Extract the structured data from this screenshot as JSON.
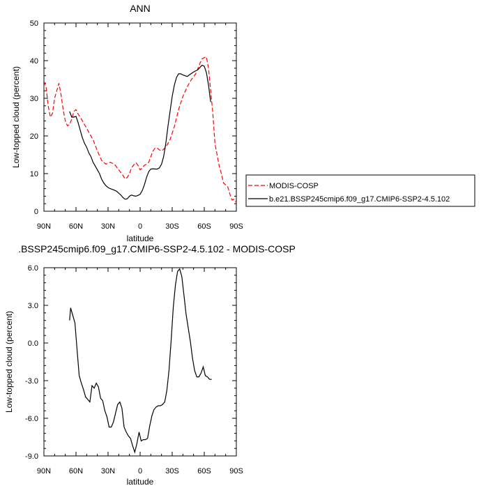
{
  "chart_data": [
    {
      "type": "line",
      "title": "ANN",
      "xlabel": "latitude",
      "ylabel": "Low-topped cloud (percent)",
      "xlim": [
        90,
        -90
      ],
      "ylim": [
        0,
        50
      ],
      "xticks": [
        90,
        60,
        30,
        0,
        -30,
        -60,
        -90
      ],
      "xtick_labels": [
        "90N",
        "60N",
        "30N",
        "0",
        "30S",
        "60S",
        "90S"
      ],
      "yticks": [
        0,
        10,
        20,
        30,
        40,
        50
      ],
      "ytick_labels": [
        "0",
        "10",
        "20",
        "30",
        "40",
        "50"
      ],
      "legend": {
        "placement": "right"
      },
      "series": [
        {
          "name": "MODIS-COSP",
          "color": "#ff0000",
          "dash": "dashed",
          "x": [
            90,
            88,
            86,
            84,
            82,
            80,
            78,
            76,
            74,
            72,
            70,
            68,
            66,
            64,
            62,
            60,
            58,
            55,
            52,
            48,
            44,
            40,
            36,
            32,
            28,
            24,
            20,
            16,
            14,
            12,
            10,
            8,
            6,
            4,
            2,
            0,
            -2,
            -4,
            -6,
            -8,
            -10,
            -12,
            -14,
            -16,
            -18,
            -20,
            -24,
            -28,
            -32,
            -36,
            -40,
            -44,
            -48,
            -52,
            -56,
            -58,
            -60,
            -62,
            -64,
            -66,
            -68,
            -70,
            -72,
            -74,
            -76,
            -78,
            -80,
            -82,
            -84,
            -86,
            -88,
            -90
          ],
          "y": [
            34.5,
            33,
            28,
            25,
            26,
            30,
            32,
            34,
            31,
            27,
            24,
            22.7,
            23,
            24.5,
            26.5,
            27,
            25.8,
            24.5,
            23,
            21,
            19,
            16,
            13.5,
            12.5,
            13,
            12.5,
            11,
            9.5,
            8.6,
            9,
            10,
            11.5,
            12.3,
            12.9,
            12.2,
            11,
            11.5,
            12.2,
            12.5,
            13,
            14.5,
            16,
            16.8,
            16.8,
            16.3,
            16,
            17,
            19,
            22.5,
            27,
            30.5,
            33,
            35,
            36.5,
            39.3,
            40.5,
            40.8,
            41,
            38,
            32,
            26,
            18,
            15,
            12,
            10,
            7.5,
            7,
            6.5,
            4.5,
            3,
            3.2,
            2.3
          ]
        },
        {
          "name": "b.e21.BSSP245cmip6.f09_g17.CMIP6-SSP2-4.5.102",
          "color": "#000000",
          "dash": "solid",
          "x": [
            66,
            64,
            62,
            60,
            58,
            56,
            54,
            52,
            50,
            48,
            46,
            44,
            42,
            40,
            38,
            36,
            34,
            32,
            30,
            28,
            26,
            24,
            22,
            20,
            18,
            16,
            14,
            12,
            10,
            8,
            6,
            4,
            2,
            0,
            -2,
            -4,
            -6,
            -8,
            -10,
            -12,
            -14,
            -16,
            -18,
            -20,
            -22,
            -24,
            -26,
            -28,
            -30,
            -32,
            -34,
            -36,
            -38,
            -40,
            -42,
            -44,
            -46,
            -48,
            -50,
            -52,
            -54,
            -56,
            -58,
            -60,
            -62,
            -64,
            -66
          ],
          "y": [
            26.5,
            25,
            25,
            25.2,
            23.5,
            21.5,
            19.5,
            18,
            17,
            15.5,
            14.5,
            13,
            12,
            11,
            10,
            8.5,
            7.5,
            6.8,
            6.3,
            6,
            5.8,
            5.6,
            5.3,
            4.8,
            4.3,
            3.6,
            3.2,
            3.3,
            4,
            4.3,
            4.1,
            4,
            4.2,
            4.5,
            5.5,
            7,
            9,
            10.5,
            11.2,
            11.3,
            11.2,
            11.2,
            11.5,
            12.5,
            14.5,
            18,
            22.5,
            26.5,
            30.5,
            33.5,
            35.5,
            36.5,
            36.5,
            36.2,
            36,
            35.8,
            36.2,
            36.6,
            37,
            37.3,
            37.6,
            38.2,
            38.8,
            38.5,
            36.8,
            33.5,
            29
          ]
        }
      ]
    },
    {
      "type": "line",
      "title": ".BSSP245cmip6.f09_g17.CMIP6-SSP2-4.5.102 - MODIS-COSP",
      "xlabel": "latitude",
      "ylabel": "Low-topped cloud (percent)",
      "xlim": [
        90,
        -90
      ],
      "ylim": [
        -9,
        6
      ],
      "xticks": [
        90,
        60,
        30,
        0,
        -30,
        -60,
        -90
      ],
      "xtick_labels": [
        "90N",
        "60N",
        "30N",
        "0",
        "30S",
        "60S",
        "90S"
      ],
      "yticks": [
        -9,
        -6,
        -3,
        0,
        3,
        6
      ],
      "ytick_labels": [
        "-9.0",
        "-6.0",
        "-3.0",
        "0.0",
        "3.0",
        "6.0"
      ],
      "series": [
        {
          "color": "#000000",
          "dash": "solid",
          "x": [
            66,
            65,
            63,
            61,
            59,
            57,
            55,
            53,
            51,
            49,
            47,
            45,
            43,
            41,
            39,
            37,
            35,
            33,
            31,
            29,
            27,
            25,
            23,
            21,
            19,
            17,
            15,
            13,
            11,
            9,
            7,
            5,
            3,
            1,
            -1,
            -3,
            -5,
            -7,
            -9,
            -11,
            -13,
            -15,
            -17,
            -19,
            -21,
            -23,
            -25,
            -27,
            -29,
            -31,
            -33,
            -35,
            -37,
            -39,
            -41,
            -43,
            -45,
            -47,
            -49,
            -51,
            -53,
            -55,
            -57,
            -59,
            -61,
            -63,
            -65,
            -67
          ],
          "y": [
            1.8,
            2.8,
            2.2,
            1.6,
            -0.5,
            -2.6,
            -3.2,
            -3.7,
            -4.3,
            -4.5,
            -4.7,
            -3.4,
            -3.6,
            -3.2,
            -3.5,
            -4.4,
            -4.6,
            -5.4,
            -5.9,
            -6.7,
            -6.7,
            -6.3,
            -5.6,
            -4.9,
            -4.7,
            -5.2,
            -6.7,
            -7.1,
            -7.4,
            -7.6,
            -8.2,
            -8.7,
            -8.0,
            -7.1,
            -7.8,
            -7.7,
            -7.7,
            -7.6,
            -6.6,
            -5.8,
            -5.3,
            -5.1,
            -5.0,
            -5.0,
            -4.9,
            -4.7,
            -3.8,
            -2.2,
            0.2,
            2.8,
            4.6,
            5.7,
            5.9,
            5.3,
            3.8,
            2.3,
            1.2,
            0.1,
            -1.2,
            -2.2,
            -2.7,
            -2.7,
            -2.4,
            -1.9,
            -2.6,
            -2.7,
            -2.9,
            -2.9
          ]
        }
      ]
    }
  ]
}
